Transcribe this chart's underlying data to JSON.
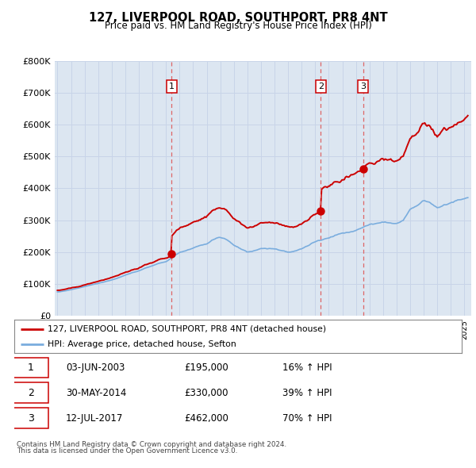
{
  "title": "127, LIVERPOOL ROAD, SOUTHPORT, PR8 4NT",
  "subtitle": "Price paid vs. HM Land Registry’s House Price Index (HPI)",
  "subtitle2": "Price paid vs. HM Land Registry's House Price Index (HPI)",
  "legend_line1": "127, LIVERPOOL ROAD, SOUTHPORT, PR8 4NT (detached house)",
  "legend_line2": "HPI: Average price, detached house, Sefton",
  "footer1": "Contains HM Land Registry data © Crown copyright and database right 2024.",
  "footer2": "This data is licensed under the Open Government Licence v3.0.",
  "sales": [
    {
      "num": 1,
      "date": "03-JUN-2003",
      "price": 195000,
      "pct": "16%",
      "year": 2003.42
    },
    {
      "num": 2,
      "date": "30-MAY-2014",
      "price": 330000,
      "pct": "39%",
      "year": 2014.41
    },
    {
      "num": 3,
      "date": "12-JUL-2017",
      "price": 462000,
      "pct": "70%",
      "year": 2017.53
    }
  ],
  "sale_prices": [
    195000,
    330000,
    462000
  ],
  "sale_years": [
    2003.42,
    2014.41,
    2017.53
  ],
  "ylim": [
    0,
    800000
  ],
  "xlim": [
    1994.8,
    2025.5
  ],
  "red_color": "#cc0000",
  "blue_color": "#7aadde",
  "grid_color": "#c8d4e8",
  "bg_color": "#dce6f1",
  "dashed_color": "#dd6666"
}
